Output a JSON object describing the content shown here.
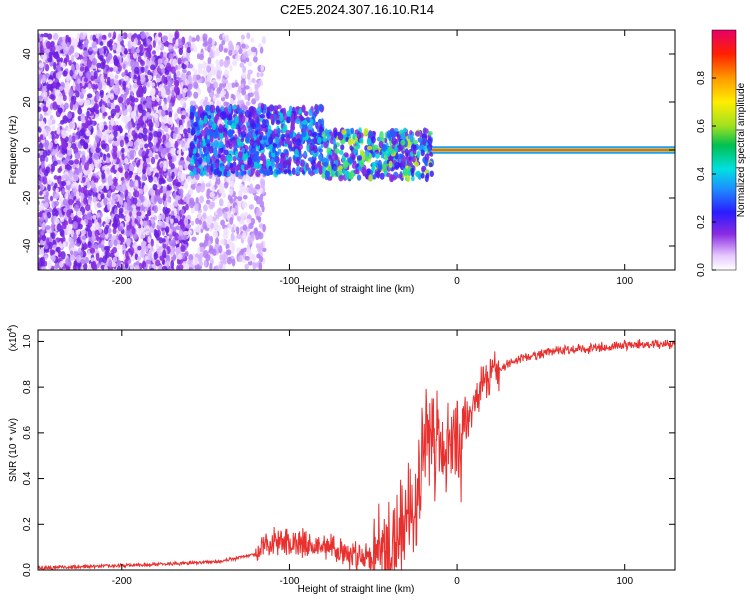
{
  "title": "C2E5.2024.307.16.10.R14",
  "chart_data": [
    {
      "type": "heatmap",
      "xlabel": "Height of straight line (km)",
      "ylabel": "Frequency (Hz)",
      "xlim": [
        -250,
        130
      ],
      "ylim": [
        -50,
        50
      ],
      "xticks": [
        -200,
        -100,
        0,
        100
      ],
      "xtick_labels": [
        "-200",
        "-100",
        "0",
        "100"
      ],
      "yticks": [
        -40,
        -20,
        0,
        20,
        40
      ],
      "ytick_labels": [
        "-40",
        "-20",
        "0",
        "20",
        "40"
      ],
      "colorbar": {
        "label": "Normalized spectral amplitude",
        "range": [
          0,
          1
        ],
        "ticks": [
          0,
          0.2,
          0.4,
          0.6,
          0.8
        ],
        "tick_labels": [
          "0.0",
          "0.2",
          "0.4",
          "0.6",
          "0.8"
        ]
      },
      "regions": [
        {
          "x_range": [
            -250,
            -160
          ],
          "freq_range": [
            -50,
            48
          ],
          "amplitude": 0.05,
          "note": "scattered noise"
        },
        {
          "x_range": [
            -160,
            -115
          ],
          "freq_range": [
            -50,
            48
          ],
          "amplitude": 0.03,
          "note": "faint noise"
        },
        {
          "x_range": [
            -160,
            -80
          ],
          "freq_range": [
            -10,
            18
          ],
          "amplitude": 0.2
        },
        {
          "x_range": [
            -80,
            -15
          ],
          "freq_range": [
            -12,
            8
          ],
          "amplitude": 0.3
        },
        {
          "x_range": [
            -15,
            130
          ],
          "freq_range": [
            -1.5,
            1.5
          ],
          "amplitude": 1.0,
          "note": "narrow band at 0 Hz"
        }
      ]
    },
    {
      "type": "line",
      "xlabel": "Height of straight line (km)",
      "ylabel": "SNR (10 * v/v)",
      "y_multiplier": "(x10",
      "y_multiplier_exp": "4",
      "y_multiplier_close": ")",
      "xlim": [
        -250,
        130
      ],
      "ylim": [
        0,
        1.05
      ],
      "xticks": [
        -200,
        -100,
        0,
        100
      ],
      "xtick_labels": [
        "-200",
        "-100",
        "0",
        "100"
      ],
      "yticks": [
        0,
        0.2,
        0.4,
        0.6,
        0.8,
        1.0
      ],
      "ytick_labels": [
        "0.0",
        "0.2",
        "0.4",
        "0.6",
        "0.8",
        "1.0"
      ],
      "series": [
        {
          "name": "SNR",
          "color": "#e8302e",
          "x": [
            -250,
            -200,
            -160,
            -140,
            -120,
            -110,
            -100,
            -90,
            -80,
            -70,
            -60,
            -50,
            -40,
            -35,
            -30,
            -25,
            -20,
            -15,
            -10,
            -5,
            0,
            5,
            10,
            15,
            20,
            30,
            40,
            60,
            80,
            100,
            130
          ],
          "y": [
            0.01,
            0.02,
            0.03,
            0.04,
            0.07,
            0.12,
            0.13,
            0.12,
            0.1,
            0.08,
            0.06,
            0.06,
            0.1,
            0.14,
            0.2,
            0.3,
            0.55,
            0.6,
            0.5,
            0.52,
            0.55,
            0.62,
            0.72,
            0.8,
            0.86,
            0.9,
            0.93,
            0.96,
            0.97,
            0.985,
            0.99
          ]
        }
      ]
    }
  ]
}
